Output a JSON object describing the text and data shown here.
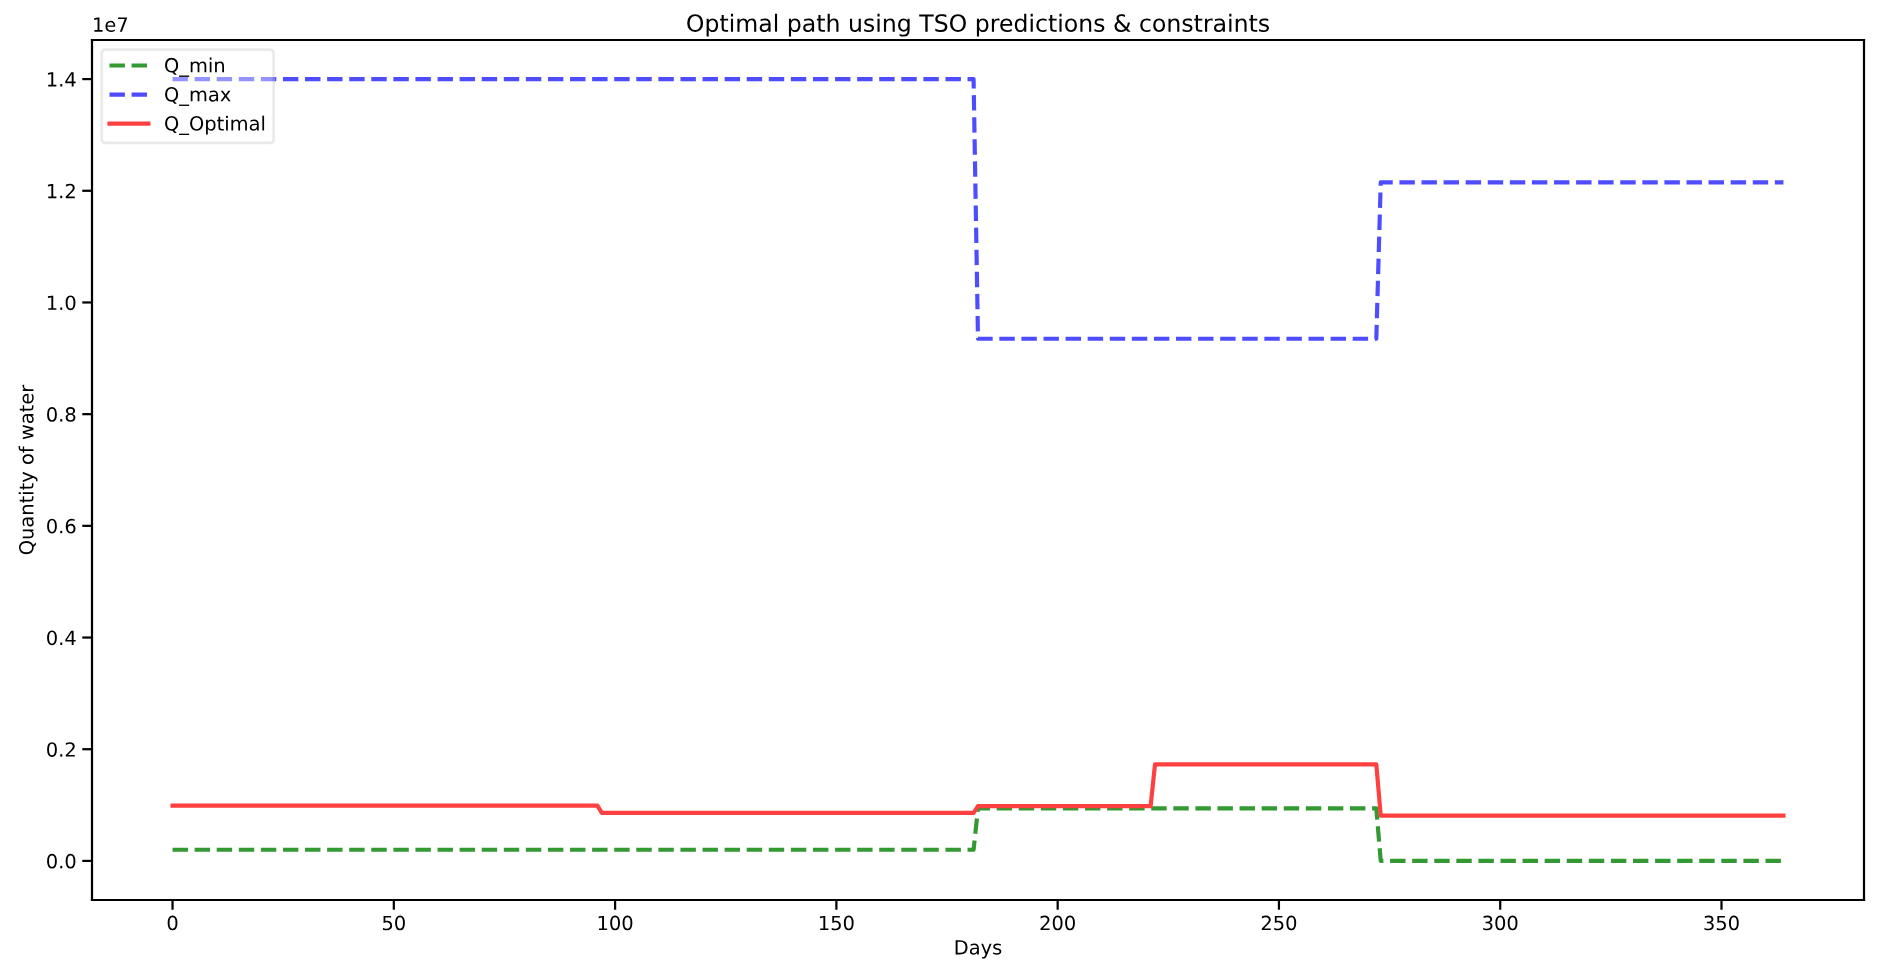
{
  "chart_data": {
    "type": "line",
    "title": "Optimal path using TSO predictions & constraints",
    "xlabel": "Days",
    "ylabel": "Quantity of water",
    "annotations": [
      "1e7"
    ],
    "series": [
      {
        "name": "Q_min",
        "color": "#339933",
        "line_style": "dashed",
        "x": [
          0,
          181,
          182,
          272,
          273,
          364
        ],
        "values": [
          0.02,
          0.02,
          0.094,
          0.094,
          0,
          0
        ]
      },
      {
        "name": "Q_max",
        "color": "#4d4dff",
        "line_style": "dashed",
        "x": [
          0,
          181,
          182,
          272,
          273,
          364
        ],
        "values": [
          1.4,
          1.4,
          0.935,
          0.935,
          1.215,
          1.215
        ]
      },
      {
        "name": "Q_Optimal",
        "color": "#ff4040",
        "line_style": "solid",
        "x": [
          0,
          96,
          97,
          181,
          182,
          221,
          222,
          272,
          273,
          364
        ],
        "values": [
          0.099,
          0.099,
          0.086,
          0.086,
          0.098,
          0.098,
          0.173,
          0.173,
          0.081,
          0.081
        ]
      }
    ],
    "xlim": [
      -18.2,
      382.2
    ],
    "xticks": [
      0,
      50,
      100,
      150,
      200,
      250,
      300,
      350
    ],
    "ylim": [
      -0.07,
      1.47
    ],
    "yticks": [
      {
        "value": 0,
        "label": "0.0"
      },
      0.2,
      0.4,
      0.6,
      0.8,
      {
        "value": 1,
        "label": "1.0"
      },
      1.2,
      1.4
    ],
    "grid": false,
    "legend": "top left",
    "marker": "none"
  }
}
